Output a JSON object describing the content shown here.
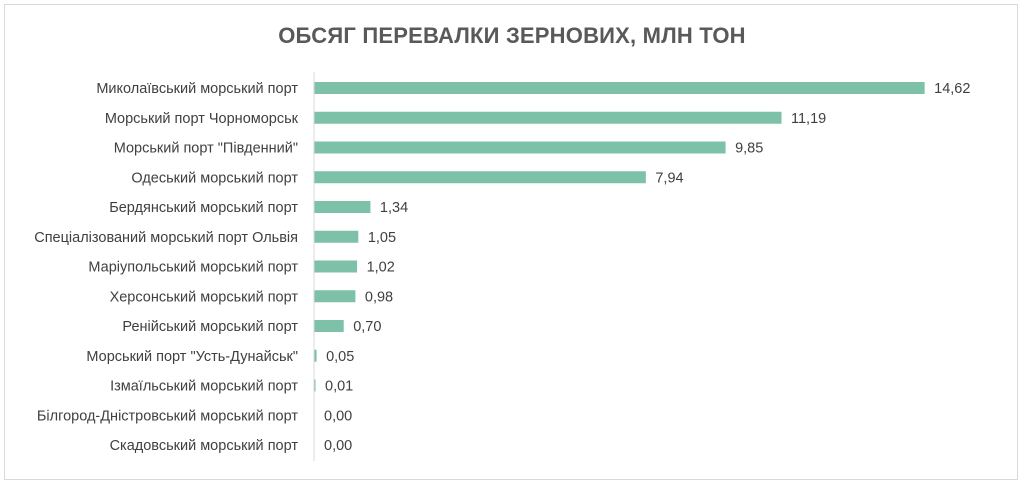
{
  "chart_data": {
    "type": "bar",
    "orientation": "horizontal",
    "title": "ОБСЯГ ПЕРЕВАЛКИ ЗЕРНОВИХ, МЛН ТОН",
    "categories": [
      "Миколаївський морський порт",
      "Морський порт Чорноморськ",
      "Морський порт \"Південний\"",
      "Одеський морський порт",
      "Бердянський морський порт",
      "Спеціалізований морський порт Ольвія",
      "Маріупольський морський порт",
      "Херсонський морський порт",
      "Ренійський морський порт",
      "Морський порт \"Усть-Дунайськ\"",
      "Ізмаїльський морський порт",
      "Білгород-Дністровський морський порт",
      "Скадовський морський порт"
    ],
    "values": [
      14.62,
      11.19,
      9.85,
      7.94,
      1.34,
      1.05,
      1.02,
      0.98,
      0.7,
      0.05,
      0.01,
      0.0,
      0.0
    ],
    "data_labels": [
      "14,62",
      "11,19",
      "9,85",
      "7,94",
      "1,34",
      "1,05",
      "1,02",
      "0,98",
      "0,70",
      "0,05",
      "0,01",
      "0,00",
      "0,00"
    ],
    "xlim": [
      0,
      15
    ],
    "grid": false,
    "legend": "none",
    "colors": {
      "bar": "#7dc1a8",
      "axis": "#d9d9d9",
      "text": "#404040",
      "title": "#595959"
    }
  }
}
